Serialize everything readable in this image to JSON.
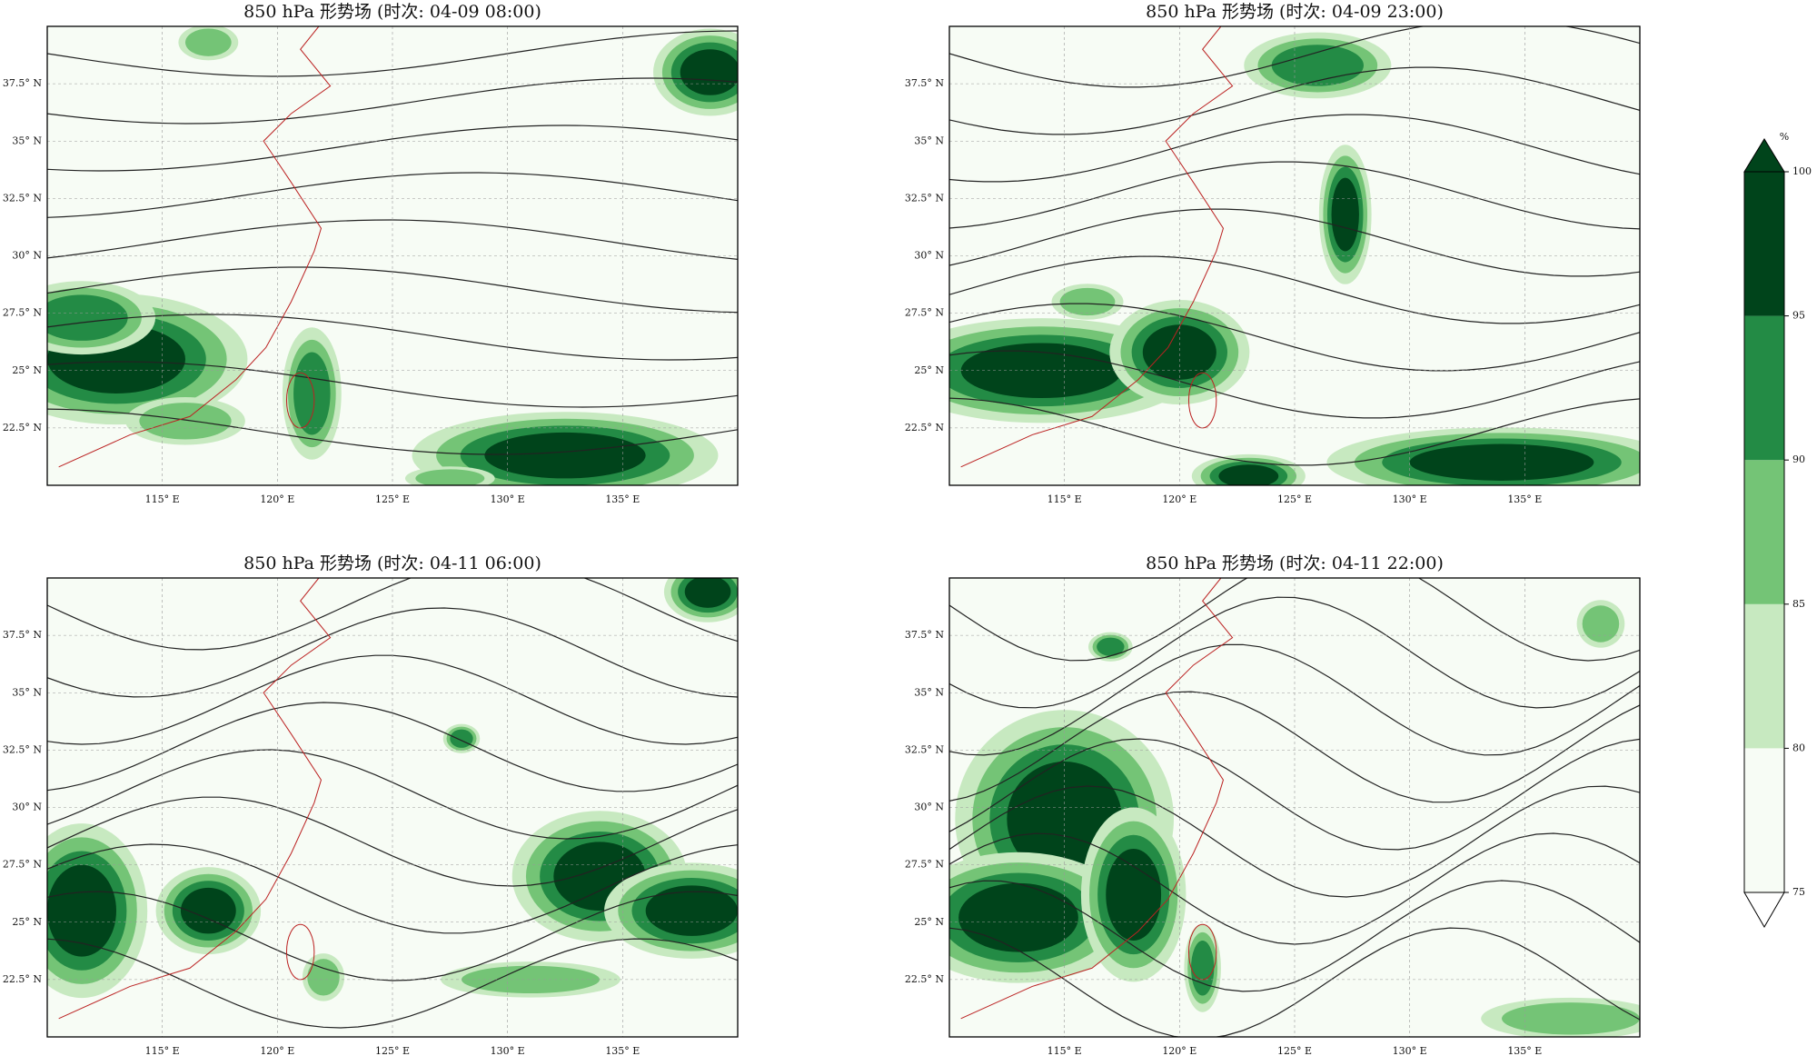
{
  "panels": [
    {
      "title": "850 hPa 形势场 (时次: 04-09 08:00)",
      "lonlim": [
        110,
        140
      ],
      "latlim": [
        20,
        40
      ],
      "lonticks": [
        {
          "value": 115,
          "label": "115° E"
        },
        {
          "value": 120,
          "label": "120° E"
        },
        {
          "value": 125,
          "label": "125° E"
        },
        {
          "value": 130,
          "label": "130° E"
        },
        {
          "value": 135,
          "label": "135° E"
        }
      ],
      "latticks": [
        {
          "value": 22.5,
          "label": "22.5° N"
        },
        {
          "value": 25,
          "label": "25° N"
        },
        {
          "value": 27.5,
          "label": "27.5° N"
        },
        {
          "value": 30,
          "label": "30° N"
        },
        {
          "value": 32.5,
          "label": "32.5° N"
        },
        {
          "value": 35,
          "label": "35° N"
        },
        {
          "value": 37.5,
          "label": "37.5° N"
        }
      ]
    },
    {
      "title": "850 hPa 形势场 (时次: 04-09 23:00)",
      "lonlim": [
        110,
        140
      ],
      "latlim": [
        20,
        40
      ],
      "lonticks": [
        {
          "value": 115,
          "label": "115° E"
        },
        {
          "value": 120,
          "label": "120° E"
        },
        {
          "value": 125,
          "label": "125° E"
        },
        {
          "value": 130,
          "label": "130° E"
        },
        {
          "value": 135,
          "label": "135° E"
        }
      ],
      "latticks": [
        {
          "value": 22.5,
          "label": "22.5° N"
        },
        {
          "value": 25,
          "label": "25° N"
        },
        {
          "value": 27.5,
          "label": "27.5° N"
        },
        {
          "value": 30,
          "label": "30° N"
        },
        {
          "value": 32.5,
          "label": "32.5° N"
        },
        {
          "value": 35,
          "label": "35° N"
        },
        {
          "value": 37.5,
          "label": "37.5° N"
        }
      ]
    },
    {
      "title": "850 hPa 形势场 (时次: 04-11 06:00)",
      "lonlim": [
        110,
        140
      ],
      "latlim": [
        20,
        40
      ],
      "lonticks": [
        {
          "value": 115,
          "label": "115° E"
        },
        {
          "value": 120,
          "label": "120° E"
        },
        {
          "value": 125,
          "label": "125° E"
        },
        {
          "value": 130,
          "label": "130° E"
        },
        {
          "value": 135,
          "label": "135° E"
        }
      ],
      "latticks": [
        {
          "value": 22.5,
          "label": "22.5° N"
        },
        {
          "value": 25,
          "label": "25° N"
        },
        {
          "value": 27.5,
          "label": "27.5° N"
        },
        {
          "value": 30,
          "label": "30° N"
        },
        {
          "value": 32.5,
          "label": "32.5° N"
        },
        {
          "value": 35,
          "label": "35° N"
        },
        {
          "value": 37.5,
          "label": "37.5° N"
        }
      ]
    },
    {
      "title": "850 hPa 形势场 (时次: 04-11 22:00)",
      "lonlim": [
        110,
        140
      ],
      "latlim": [
        20,
        40
      ],
      "lonticks": [
        {
          "value": 115,
          "label": "115° E"
        },
        {
          "value": 120,
          "label": "120° E"
        },
        {
          "value": 125,
          "label": "125° E"
        },
        {
          "value": 130,
          "label": "130° E"
        },
        {
          "value": 135,
          "label": "135° E"
        }
      ],
      "latticks": [
        {
          "value": 22.5,
          "label": "22.5° N"
        },
        {
          "value": 25,
          "label": "25° N"
        },
        {
          "value": 27.5,
          "label": "27.5° N"
        },
        {
          "value": 30,
          "label": "30° N"
        },
        {
          "value": 32.5,
          "label": "32.5° N"
        },
        {
          "value": 35,
          "label": "35° N"
        },
        {
          "value": 37.5,
          "label": "37.5° N"
        }
      ]
    }
  ],
  "colorbar": {
    "label": "%",
    "levels": [
      75,
      80,
      85,
      90,
      95,
      100
    ],
    "colors": [
      "#f7fcf5",
      "#c7e9c0",
      "#74c476",
      "#238b45",
      "#00441b"
    ]
  }
}
